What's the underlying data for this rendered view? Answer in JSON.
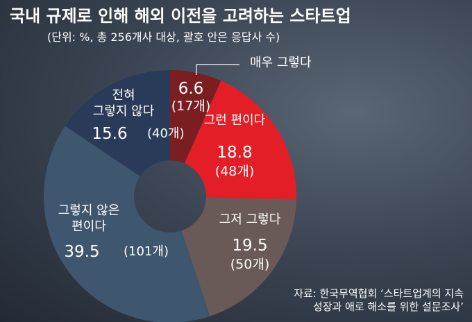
{
  "chart_data": {
    "type": "pie",
    "title": "국내 규제로 인해 해외 이전을 고려하는 스타트업",
    "subtitle": "(단위: %, 총 256개사 대상, 괄호 안은 응답사 수)",
    "categories": [
      "매우 그렇다",
      "그런 편이다",
      "그저 그렇다",
      "그렇지 않은\n편이다",
      "전혀\n그렇지 않다"
    ],
    "values": [
      6.6,
      18.8,
      19.5,
      39.5,
      15.6
    ],
    "count_labels": [
      "(17개)",
      "(48개)",
      "(50개)",
      "(101개)",
      "(40개)"
    ],
    "colors": [
      "#7b1e22",
      "#e41e26",
      "#6a5a57",
      "#3f566f",
      "#293b58"
    ],
    "source": "자료: 한국무역협회 ‘스타트업계의 지속\n성장과 애로 해소를 위한 설문조사’"
  }
}
